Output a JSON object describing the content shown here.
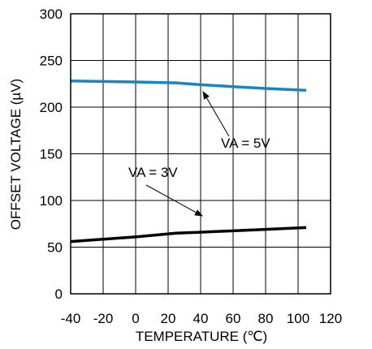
{
  "chart_data": {
    "type": "line",
    "title": "",
    "xlabel": "TEMPERATURE (℃)",
    "ylabel": "OFFSET VOLTAGE (µV)",
    "xlim": [
      -40,
      120
    ],
    "ylim": [
      0,
      300
    ],
    "grid": true,
    "x_ticks": [
      -40,
      -20,
      0,
      20,
      40,
      60,
      80,
      100,
      120
    ],
    "y_ticks": [
      0,
      50,
      100,
      150,
      200,
      250,
      300
    ],
    "series": [
      {
        "name": "VA = 5V",
        "color": "#1a85c0",
        "x": [
          -40,
          0,
          25,
          40,
          60,
          80,
          105
        ],
        "y": [
          228,
          227,
          226,
          224,
          222,
          220,
          218
        ]
      },
      {
        "name": "VA = 3V",
        "color": "#000000",
        "x": [
          -40,
          0,
          25,
          40,
          60,
          80,
          105
        ],
        "y": [
          56,
          61,
          65,
          66,
          67.5,
          69,
          71
        ]
      }
    ],
    "annotations": [
      {
        "text": "VA = 5V",
        "series": 0,
        "arrow_to": [
          33,
          221
        ]
      },
      {
        "text": "VA = 3V",
        "series": 1,
        "arrow_to": [
          23,
          83
        ]
      }
    ]
  }
}
